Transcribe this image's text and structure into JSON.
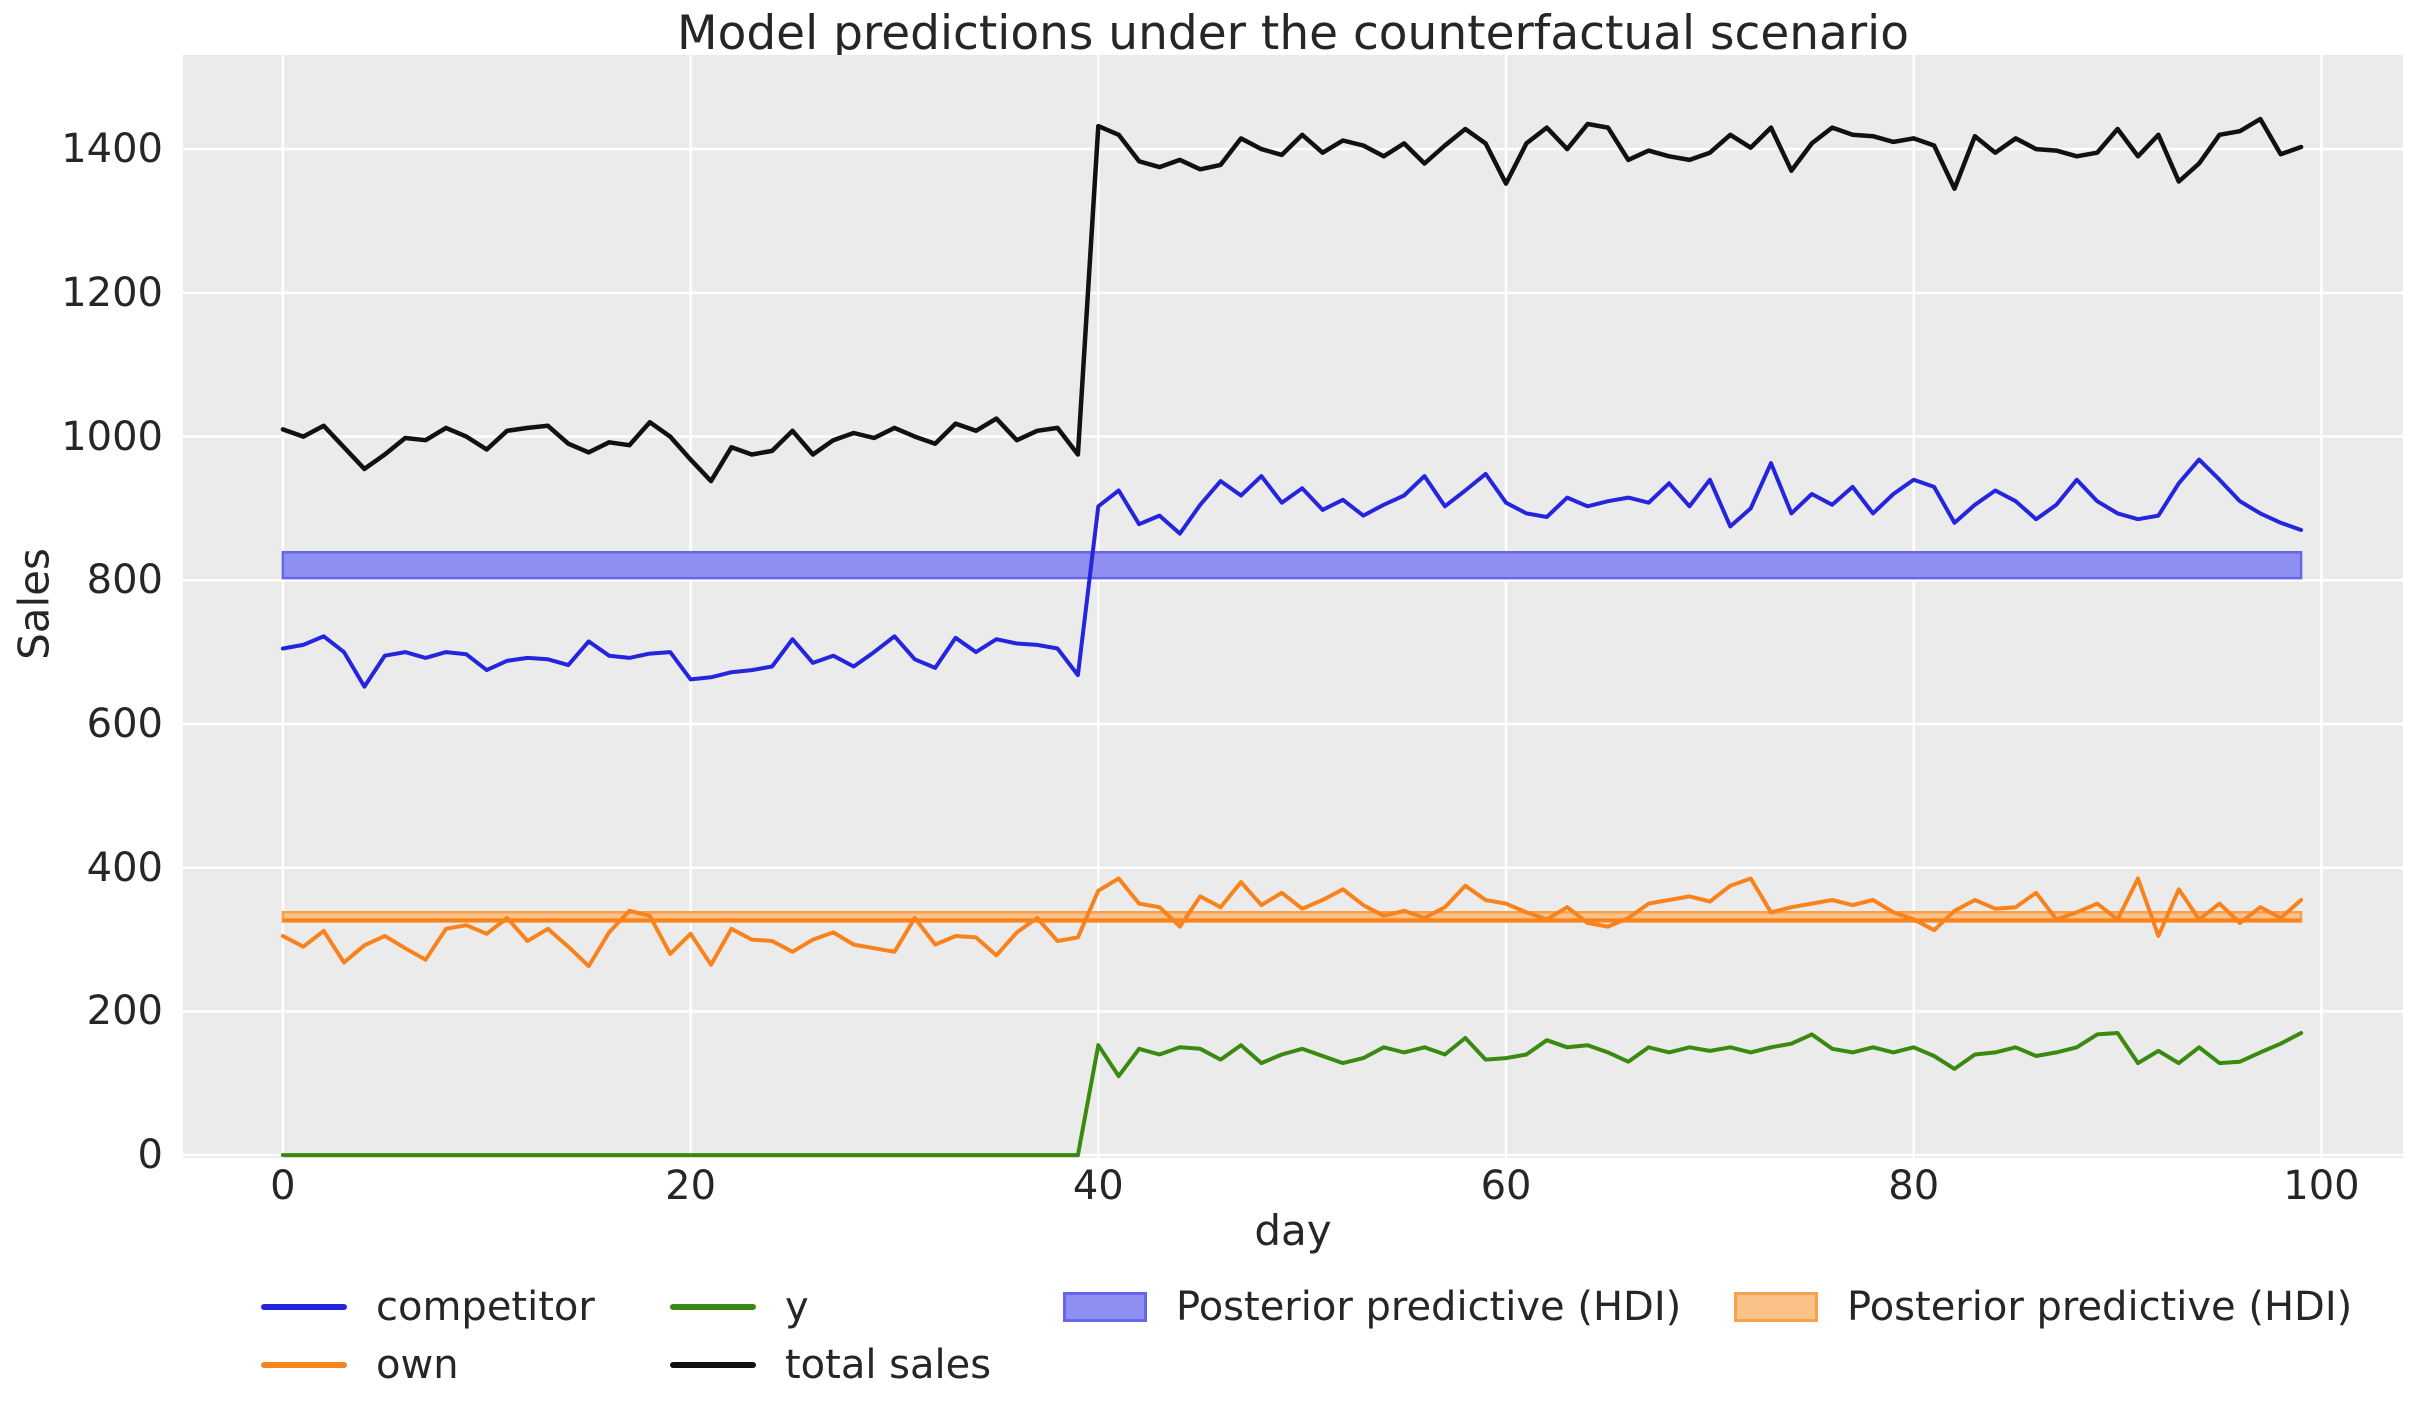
{
  "title": "Model predictions under the counterfactual scenario",
  "axes": {
    "xlabel": "day",
    "ylabel": "Sales",
    "x_ticks": [
      0,
      20,
      40,
      60,
      80,
      100
    ],
    "y_ticks": [
      0,
      200,
      400,
      600,
      800,
      1000,
      1200,
      1400
    ]
  },
  "colors": {
    "figure_background": "#ffffff",
    "plot_background": "#ebebeb",
    "grid": "#ffffff",
    "text": "#262626",
    "competitor": "#2525dd",
    "own": "#f8831d",
    "y": "#3a8a12",
    "total_sales": "#111111",
    "competitor_hdi_fill": "#8f8ff1",
    "competitor_hdi_edge": "#6666ea",
    "own_hdi_fill": "#fac188",
    "own_hdi_edge": "#f6a050"
  },
  "legend": {
    "entries": [
      {
        "label": "competitor",
        "swatch": "line",
        "color": "#2525dd"
      },
      {
        "label": "own",
        "swatch": "line",
        "color": "#f8831d"
      },
      {
        "label": "y",
        "swatch": "line",
        "color": "#3a8a12"
      },
      {
        "label": "total sales",
        "swatch": "line",
        "color": "#111111"
      },
      {
        "label": "Posterior predictive (HDI)",
        "swatch": "patch",
        "color": "#8f8ff1",
        "edge": "#6666ea"
      },
      {
        "label": "Posterior predictive (HDI)",
        "swatch": "patch",
        "color": "#fac188",
        "edge": "#f6a050"
      }
    ]
  },
  "chart_data": {
    "type": "line",
    "title": "Model predictions under the counterfactual scenario",
    "xlabel": "day",
    "ylabel": "Sales",
    "x_start": 0,
    "x_step": 1,
    "n_points": 100,
    "intervention_day": 40,
    "xlim": [
      -4.9,
      104.0
    ],
    "ylim": [
      -4,
      1531
    ],
    "grid": true,
    "legend_position": "below center",
    "x_ticks": [
      0,
      20,
      40,
      60,
      80,
      100
    ],
    "y_ticks": [
      0,
      200,
      400,
      600,
      800,
      1000,
      1200,
      1400
    ],
    "series": [
      {
        "name": "competitor",
        "color": "#2525dd",
        "width": 4,
        "values": [
          705,
          710,
          722,
          700,
          652,
          695,
          700,
          692,
          700,
          697,
          675,
          688,
          692,
          690,
          682,
          715,
          695,
          692,
          698,
          700,
          662,
          665,
          672,
          675,
          680,
          718,
          685,
          695,
          680,
          700,
          722,
          690,
          678,
          720,
          700,
          718,
          712,
          710,
          705,
          668,
          903,
          925,
          878,
          890,
          865,
          905,
          938,
          918,
          945,
          908,
          928,
          898,
          912,
          890,
          905,
          918,
          945,
          903,
          925,
          948,
          908,
          893,
          888,
          915,
          903,
          910,
          915,
          908,
          935,
          903,
          940,
          875,
          900,
          963,
          893,
          920,
          905,
          930,
          893,
          920,
          940,
          930,
          880,
          905,
          925,
          910,
          885,
          905,
          940,
          910,
          893,
          885,
          890,
          935,
          968,
          940,
          910,
          893,
          880,
          870
        ]
      },
      {
        "name": "own",
        "color": "#f8831d",
        "width": 4,
        "values": [
          305,
          290,
          312,
          268,
          292,
          305,
          288,
          272,
          315,
          320,
          308,
          330,
          298,
          315,
          290,
          263,
          310,
          340,
          333,
          280,
          308,
          265,
          315,
          300,
          298,
          283,
          300,
          310,
          293,
          288,
          283,
          330,
          293,
          305,
          303,
          278,
          310,
          330,
          298,
          303,
          368,
          385,
          350,
          345,
          318,
          360,
          345,
          380,
          348,
          365,
          343,
          355,
          370,
          348,
          333,
          340,
          330,
          345,
          375,
          355,
          350,
          338,
          328,
          345,
          323,
          318,
          330,
          350,
          355,
          360,
          353,
          375,
          385,
          338,
          345,
          350,
          355,
          348,
          355,
          338,
          328,
          313,
          340,
          355,
          343,
          345,
          365,
          328,
          338,
          350,
          328,
          385,
          305,
          370,
          328,
          350,
          323,
          345,
          330,
          355
        ]
      },
      {
        "name": "y",
        "color": "#3a8a12",
        "width": 4,
        "values": [
          0,
          0,
          0,
          0,
          0,
          0,
          0,
          0,
          0,
          0,
          0,
          0,
          0,
          0,
          0,
          0,
          0,
          0,
          0,
          0,
          0,
          0,
          0,
          0,
          0,
          0,
          0,
          0,
          0,
          0,
          0,
          0,
          0,
          0,
          0,
          0,
          0,
          0,
          0,
          0,
          153,
          110,
          148,
          140,
          150,
          148,
          133,
          153,
          128,
          140,
          148,
          138,
          128,
          135,
          150,
          143,
          150,
          140,
          163,
          133,
          135,
          140,
          160,
          150,
          153,
          143,
          130,
          150,
          143,
          150,
          145,
          150,
          143,
          150,
          155,
          168,
          148,
          143,
          150,
          143,
          150,
          138,
          120,
          140,
          143,
          150,
          138,
          143,
          150,
          168,
          170,
          128,
          145,
          128,
          150,
          128,
          130,
          143,
          155,
          170
        ]
      },
      {
        "name": "total sales",
        "color": "#111111",
        "width": 4.5,
        "values": [
          1010,
          1000,
          1015,
          985,
          955,
          975,
          998,
          995,
          1012,
          1000,
          982,
          1008,
          1012,
          1015,
          990,
          978,
          992,
          988,
          1020,
          1000,
          968,
          938,
          985,
          975,
          980,
          1008,
          975,
          995,
          1005,
          998,
          1012,
          1000,
          990,
          1018,
          1008,
          1025,
          995,
          1008,
          1012,
          975,
          1432,
          1420,
          1383,
          1375,
          1385,
          1372,
          1378,
          1415,
          1400,
          1392,
          1420,
          1395,
          1412,
          1405,
          1390,
          1408,
          1380,
          1405,
          1428,
          1408,
          1352,
          1408,
          1430,
          1400,
          1435,
          1430,
          1385,
          1398,
          1390,
          1385,
          1395,
          1420,
          1402,
          1430,
          1370,
          1408,
          1430,
          1420,
          1418,
          1410,
          1415,
          1405,
          1345,
          1418,
          1395,
          1415,
          1400,
          1398,
          1390,
          1395,
          1428,
          1390,
          1420,
          1355,
          1380,
          1420,
          1425,
          1442,
          1393,
          1403
        ]
      }
    ],
    "bands": [
      {
        "name": "Posterior predictive (HDI)",
        "applies_to": "competitor",
        "lo": 803,
        "hi": 839,
        "fill": "#8f8ff1",
        "edge": "#6666ea",
        "x_from": 0,
        "x_to": 99
      },
      {
        "name": "Posterior predictive (HDI)",
        "applies_to": "own",
        "lo": 325,
        "hi": 338,
        "mid_line": 327,
        "fill": "#fac188",
        "edge": "#f6a050",
        "x_from": 0,
        "x_to": 99
      }
    ]
  }
}
